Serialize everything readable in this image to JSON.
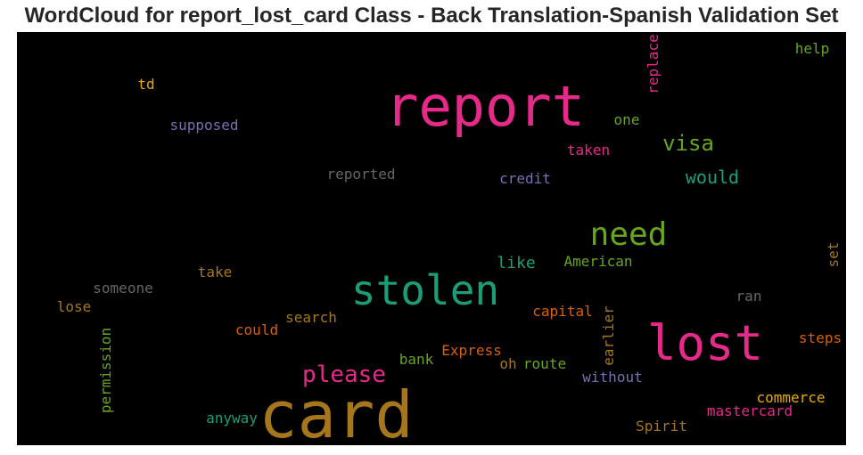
{
  "title": "WordCloud for report_lost_card Class - Back Translation-Spanish Validation Set",
  "words": [
    {
      "text": "report",
      "color": "#e7298a"
    },
    {
      "text": "card",
      "color": "#a6761d"
    },
    {
      "text": "stolen",
      "color": "#1b9e77"
    },
    {
      "text": "lost",
      "color": "#e7298a"
    },
    {
      "text": "need",
      "color": "#66a61e"
    },
    {
      "text": "visa",
      "color": "#66a61e"
    },
    {
      "text": "please",
      "color": "#e7298a"
    },
    {
      "text": "would",
      "color": "#1b9e77"
    },
    {
      "text": "like",
      "color": "#1b9e77"
    },
    {
      "text": "American",
      "color": "#66a61e"
    },
    {
      "text": "help",
      "color": "#66a61e"
    },
    {
      "text": "td",
      "color": "#e6ab02"
    },
    {
      "text": "supposed",
      "color": "#7570b3"
    },
    {
      "text": "replace",
      "color": "#e7298a"
    },
    {
      "text": "one",
      "color": "#66a61e"
    },
    {
      "text": "taken",
      "color": "#e7298a"
    },
    {
      "text": "reported",
      "color": "#666666"
    },
    {
      "text": "credit",
      "color": "#7570b3"
    },
    {
      "text": "take",
      "color": "#a6761d"
    },
    {
      "text": "someone",
      "color": "#666666"
    },
    {
      "text": "lose",
      "color": "#a6761d"
    },
    {
      "text": "ran",
      "color": "#666666"
    },
    {
      "text": "set",
      "color": "#a6761d"
    },
    {
      "text": "capital",
      "color": "#d95f02"
    },
    {
      "text": "search",
      "color": "#a6761d"
    },
    {
      "text": "could",
      "color": "#d95f02"
    },
    {
      "text": "permission",
      "color": "#66a61e"
    },
    {
      "text": "earlier",
      "color": "#a6761d"
    },
    {
      "text": "steps",
      "color": "#d95f02"
    },
    {
      "text": "Express",
      "color": "#d95f02"
    },
    {
      "text": "bank",
      "color": "#66a61e"
    },
    {
      "text": "oh",
      "color": "#a6761d"
    },
    {
      "text": "route",
      "color": "#66a61e"
    },
    {
      "text": "without",
      "color": "#7570b3"
    },
    {
      "text": "commerce",
      "color": "#e6ab02"
    },
    {
      "text": "mastercard",
      "color": "#e7298a"
    },
    {
      "text": "anyway",
      "color": "#1b9e77"
    },
    {
      "text": "Spirit",
      "color": "#a6761d"
    }
  ]
}
